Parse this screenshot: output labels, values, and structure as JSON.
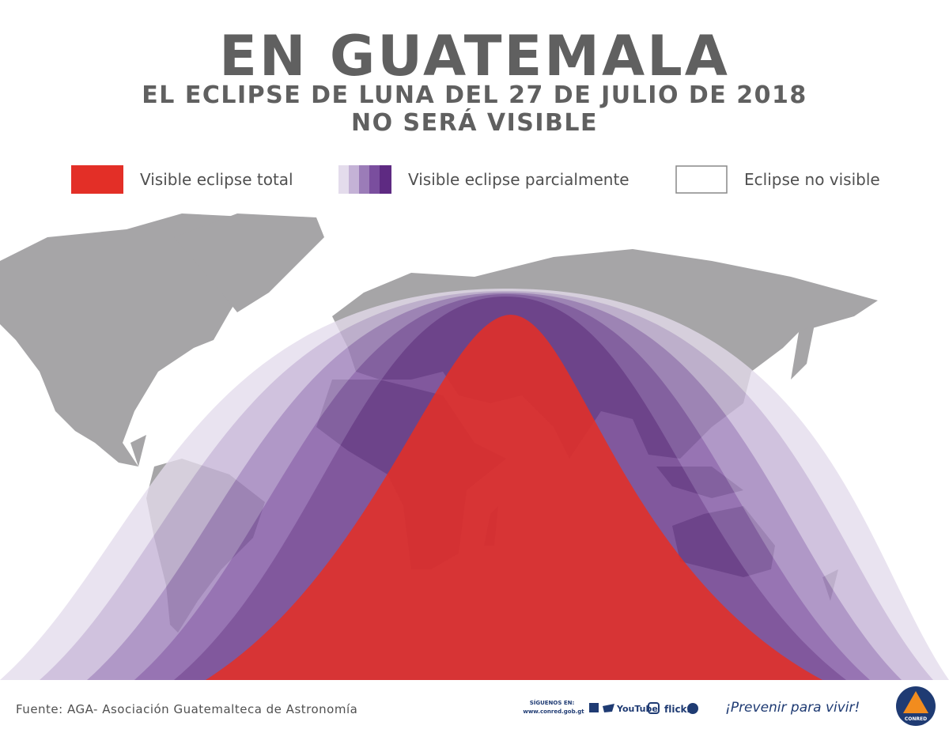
{
  "header": {
    "title": "EN GUATEMALA",
    "subtitle": "EL ECLIPSE DE LUNA DEL 27 DE JULIO DE 2018",
    "subtitle_2": "NO SERÁ VISIBLE"
  },
  "legend": [
    {
      "label": "Visible eclipse total"
    },
    {
      "label": "Visible eclipse parcialmente"
    },
    {
      "label": "Eclipse no visible"
    }
  ],
  "footer": {
    "source": "Fuente: AGA- Asociación Guatemalteca de Astronomía",
    "follow": "SÍGUENOS EN:",
    "website": "www.conred.gob.gt",
    "social": [
      "YouTube",
      "flickr"
    ],
    "slogan": "¡Prevenir para vivir!",
    "logo": "CONRED"
  }
}
